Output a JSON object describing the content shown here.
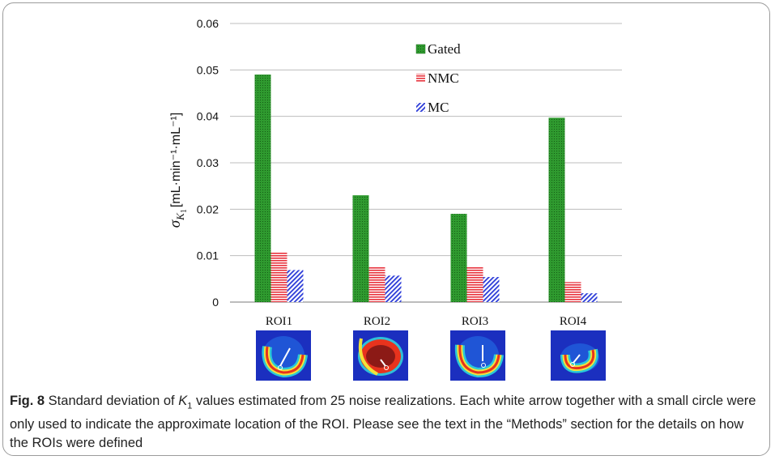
{
  "chart_data": {
    "type": "bar",
    "categories": [
      "ROI1",
      "ROI2",
      "ROI3",
      "ROI4"
    ],
    "series": [
      {
        "name": "Gated",
        "values": [
          0.049,
          0.023,
          0.019,
          0.0397
        ],
        "color": "#2e8b2e",
        "pattern": "dotted"
      },
      {
        "name": "NMC",
        "values": [
          0.0108,
          0.0076,
          0.0076,
          0.0043
        ],
        "color": "#e8323c",
        "pattern": "horizontal-lines"
      },
      {
        "name": "MC",
        "values": [
          0.0069,
          0.0057,
          0.0054,
          0.0019
        ],
        "color": "#2a3ad8",
        "pattern": "diagonal-lines"
      }
    ],
    "ylim": [
      0,
      0.06
    ],
    "yticks": [
      "0",
      "0.01",
      "0.02",
      "0.03",
      "0.04",
      "0.05",
      "0.06"
    ],
    "ylabel_sigma": "σ",
    "ylabel_subscript": "K",
    "ylabel_subsubscript": "1",
    "ylabel_units": "[mL·min⁻¹·mL⁻¹]",
    "xlabel": "",
    "grid": "horizontal",
    "legend_position": "top-right inside plot"
  },
  "roi_thumbnails": [
    {
      "roi": "ROI1",
      "icon": "heart-roi-thumbnail"
    },
    {
      "roi": "ROI2",
      "icon": "heart-roi-thumbnail"
    },
    {
      "roi": "ROI3",
      "icon": "heart-roi-thumbnail"
    },
    {
      "roi": "ROI4",
      "icon": "heart-roi-thumbnail"
    }
  ],
  "caption": {
    "label": "Fig. 8",
    "text_before_k": " Standard deviation of ",
    "k_symbol": "K",
    "k_sub": "1",
    "text_after_k": " values estimated from 25 noise realizations. Each white arrow together with a small circle were only used to indicate the approximate location of the ROI. Please see the text in the “Methods” section for the details on how the ROIs were defined"
  }
}
